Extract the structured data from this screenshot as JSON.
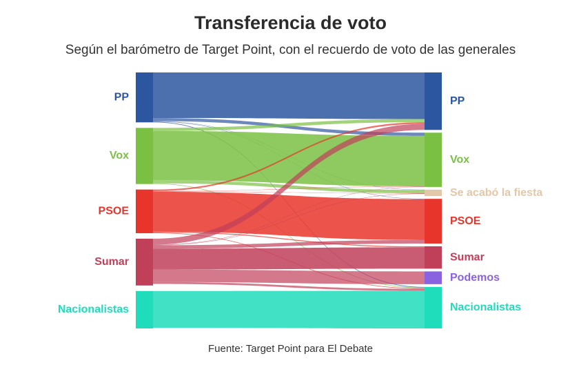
{
  "title": "Transferencia de voto",
  "subtitle": "Según el barómetro de Target Point, con el recuerdo de voto de las generales",
  "source": "Fuente: Target Point para El Debate",
  "chart_data": {
    "type": "sankey",
    "sources": [
      {
        "id": "PP",
        "label": "PP",
        "color": "#2d56a0",
        "value": 16
      },
      {
        "id": "Vox",
        "label": "Vox",
        "color": "#7ac143",
        "value": 18
      },
      {
        "id": "PSOE",
        "label": "PSOE",
        "color": "#e8352b",
        "value": 14
      },
      {
        "id": "Sumar",
        "label": "Sumar",
        "color": "#c0405a",
        "value": 15
      },
      {
        "id": "Nacionalistas",
        "label": "Nacionalistas",
        "color": "#1fdcbb",
        "value": 12
      }
    ],
    "targets": [
      {
        "id": "PP",
        "label": "PP",
        "color": "#2d56a0",
        "value": 18
      },
      {
        "id": "Vox",
        "label": "Vox",
        "color": "#7ac143",
        "value": 17
      },
      {
        "id": "SALF",
        "label": "Se acabó la fiesta",
        "color": "#e2c8a8",
        "value": 2
      },
      {
        "id": "PSOE",
        "label": "PSOE",
        "color": "#e8352b",
        "value": 14
      },
      {
        "id": "Sumar",
        "label": "Sumar",
        "color": "#c0405a",
        "value": 7
      },
      {
        "id": "Podemos",
        "label": "Podemos",
        "color": "#8a63e0",
        "value": 4
      },
      {
        "id": "Nacionalistas",
        "label": "Nacionalistas",
        "color": "#1fdcbb",
        "value": 13
      }
    ],
    "flows": [
      {
        "from": "PP",
        "to": "PP",
        "value": 14.6
      },
      {
        "from": "PP",
        "to": "Vox",
        "value": 1.0
      },
      {
        "from": "PP",
        "to": "SALF",
        "value": 0.1
      },
      {
        "from": "PP",
        "to": "PSOE",
        "value": 0.1
      },
      {
        "from": "PP",
        "to": "Nacionalistas",
        "value": 0.2
      },
      {
        "from": "Vox",
        "to": "PP",
        "value": 1.0
      },
      {
        "from": "Vox",
        "to": "Vox",
        "value": 15.8
      },
      {
        "from": "Vox",
        "to": "SALF",
        "value": 1.0
      },
      {
        "from": "Vox",
        "to": "Nacionalistas",
        "value": 0.2
      },
      {
        "from": "PSOE",
        "to": "PP",
        "value": 0.5
      },
      {
        "from": "PSOE",
        "to": "Vox",
        "value": 0.1
      },
      {
        "from": "PSOE",
        "to": "SALF",
        "value": 0.1
      },
      {
        "from": "PSOE",
        "to": "PSOE",
        "value": 12.8
      },
      {
        "from": "PSOE",
        "to": "Sumar",
        "value": 0.3
      },
      {
        "from": "PSOE",
        "to": "Nacionalistas",
        "value": 0.2
      },
      {
        "from": "Sumar",
        "to": "PP",
        "value": 1.9
      },
      {
        "from": "Sumar",
        "to": "Vox",
        "value": 0.1
      },
      {
        "from": "Sumar",
        "to": "SALF",
        "value": 0.1
      },
      {
        "from": "Sumar",
        "to": "PSOE",
        "value": 1.1
      },
      {
        "from": "Sumar",
        "to": "Sumar",
        "value": 6.7
      },
      {
        "from": "Sumar",
        "to": "Podemos",
        "value": 4.0
      },
      {
        "from": "Sumar",
        "to": "Nacionalistas",
        "value": 0.6
      },
      {
        "from": "Nacionalistas",
        "to": "Nacionalistas",
        "value": 11.8
      }
    ]
  }
}
